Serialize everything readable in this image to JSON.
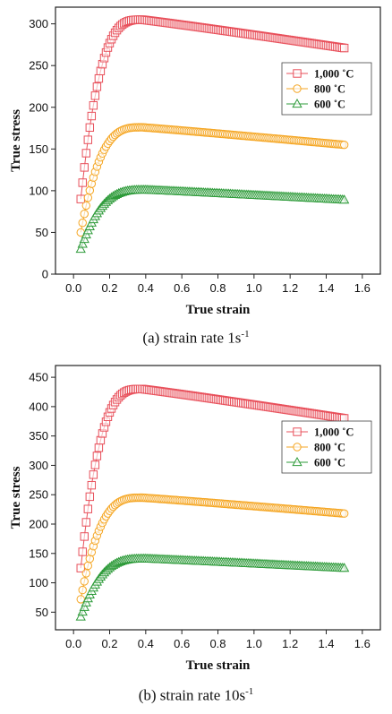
{
  "colors": {
    "c1000": "#e8505b",
    "c800": "#f5a623",
    "c600": "#2e9b3a"
  },
  "chart_data": [
    {
      "type": "scatter",
      "caption": {
        "text": "(a) strain rate 1s",
        "sup": "-1"
      },
      "xlabel": "True strain",
      "ylabel": "True stress",
      "xlim": [
        -0.1,
        1.7
      ],
      "ylim": [
        0,
        320
      ],
      "xticks": [
        "0.0",
        "0.2",
        "0.4",
        "0.6",
        "0.8",
        "1.0",
        "1.2",
        "1.4",
        "1.6"
      ],
      "yticks": [
        "0",
        "50",
        "100",
        "150",
        "200",
        "250",
        "300"
      ],
      "legend_position": "center-right",
      "series": [
        {
          "name": "1,000 ˚C",
          "marker": "square",
          "color": "#e8505b",
          "start": 90,
          "peak": 305,
          "peak_strain": 0.38,
          "end": 271,
          "end_strain": 1.5
        },
        {
          "name": "800 ˚C",
          "marker": "circle",
          "color": "#f5a623",
          "start": 50,
          "peak": 176,
          "peak_strain": 0.38,
          "end": 155,
          "end_strain": 1.5
        },
        {
          "name": "600 ˚C",
          "marker": "triangle",
          "color": "#2e9b3a",
          "start": 30,
          "peak": 101,
          "peak_strain": 0.4,
          "end": 89,
          "end_strain": 1.5
        }
      ]
    },
    {
      "type": "scatter",
      "caption": {
        "text": "(b) strain rate 10s",
        "sup": "-1"
      },
      "xlabel": "True strain",
      "ylabel": "True stress",
      "xlim": [
        -0.1,
        1.7
      ],
      "ylim": [
        20,
        470
      ],
      "xticks": [
        "0.0",
        "0.2",
        "0.4",
        "0.6",
        "0.8",
        "1.0",
        "1.2",
        "1.4",
        "1.6"
      ],
      "yticks": [
        "50",
        "100",
        "150",
        "200",
        "250",
        "300",
        "350",
        "400",
        "450"
      ],
      "legend_position": "center-right",
      "series": [
        {
          "name": "1,000 ˚C",
          "marker": "square",
          "color": "#e8505b",
          "start": 125,
          "peak": 430,
          "peak_strain": 0.38,
          "end": 380,
          "end_strain": 1.5
        },
        {
          "name": "800 ˚C",
          "marker": "circle",
          "color": "#f5a623",
          "start": 72,
          "peak": 245,
          "peak_strain": 0.38,
          "end": 218,
          "end_strain": 1.5
        },
        {
          "name": "600 ˚C",
          "marker": "triangle",
          "color": "#2e9b3a",
          "start": 42,
          "peak": 141,
          "peak_strain": 0.4,
          "end": 125,
          "end_strain": 1.5
        }
      ]
    }
  ]
}
